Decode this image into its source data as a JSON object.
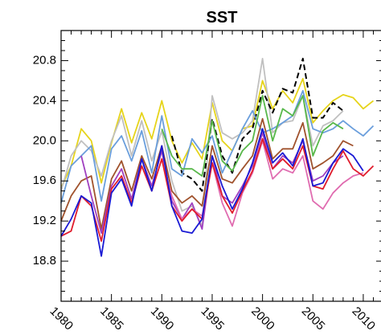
{
  "chart_data": {
    "type": "line",
    "title": "SST",
    "xlabel": "",
    "ylabel": "",
    "xlim": [
      1980,
      2012
    ],
    "ylim": [
      18.4,
      21.1
    ],
    "grid": false,
    "x_ticks": [
      "1980",
      "1985",
      "1990",
      "1995",
      "2000",
      "2005",
      "2010"
    ],
    "y_ticks": [
      "18.8",
      "19.2",
      "19.6",
      "20.0",
      "20.4",
      "20.8"
    ],
    "x": [
      1980,
      1981,
      1982,
      1983,
      1984,
      1985,
      1986,
      1987,
      1988,
      1989,
      1990,
      1991,
      1992,
      1993,
      1994,
      1995,
      1996,
      1997,
      1998,
      1999,
      2000,
      2001,
      2002,
      2003,
      2004,
      2005,
      2006,
      2007,
      2008,
      2009,
      2010,
      2011
    ],
    "series": [
      {
        "color": "#e6d41a",
        "dash": false,
        "values": [
          19.53,
          19.75,
          20.12,
          20.0,
          19.58,
          19.98,
          20.32,
          19.98,
          20.28,
          20.02,
          20.4,
          20.0,
          19.78,
          19.98,
          19.82,
          20.38,
          20.0,
          19.9,
          20.12,
          20.15,
          20.6,
          20.32,
          20.5,
          20.38,
          20.62,
          20.18,
          20.3,
          20.4,
          20.46,
          20.43,
          20.32,
          20.4
        ]
      },
      {
        "color": "#c0c0c0",
        "dash": false,
        "values": [
          19.5,
          19.85,
          20.0,
          19.9,
          19.65,
          20.0,
          20.25,
          19.85,
          20.2,
          19.8,
          20.1,
          19.6,
          19.3,
          19.35,
          19.15,
          20.45,
          20.08,
          20.02,
          20.08,
          20.2,
          20.82,
          20.08,
          20.18,
          20.2,
          20.45,
          19.95,
          20.15,
          20.2,
          20.3,
          null,
          null,
          null
        ]
      },
      {
        "color": "#000000",
        "dash": true,
        "values": [
          null,
          null,
          null,
          null,
          null,
          null,
          null,
          null,
          null,
          null,
          null,
          20.05,
          19.68,
          19.62,
          19.5,
          20.22,
          19.85,
          19.68,
          20.02,
          20.12,
          20.5,
          20.28,
          20.52,
          20.48,
          20.82,
          20.23,
          20.23,
          20.38,
          20.3,
          null,
          null,
          null
        ]
      },
      {
        "color": "#6a9edc",
        "dash": false,
        "values": [
          19.38,
          19.75,
          19.85,
          19.95,
          19.4,
          19.92,
          20.05,
          19.8,
          20.1,
          19.68,
          20.25,
          19.72,
          19.65,
          20.02,
          19.88,
          20.05,
          19.68,
          19.9,
          20.12,
          20.3,
          20.08,
          20.12,
          20.18,
          20.25,
          20.5,
          20.12,
          20.08,
          20.12,
          20.2,
          20.12,
          20.05,
          20.15
        ]
      },
      {
        "color": "#58b84a",
        "dash": false,
        "values": [
          null,
          null,
          null,
          null,
          null,
          null,
          null,
          null,
          null,
          null,
          20.12,
          19.85,
          19.72,
          19.72,
          19.65,
          20.2,
          19.8,
          19.7,
          19.9,
          20.0,
          20.45,
          20.0,
          20.32,
          20.25,
          20.45,
          19.85,
          20.1,
          20.18,
          20.12,
          null,
          null,
          null
        ]
      },
      {
        "color": "#a0522d",
        "dash": false,
        "values": [
          19.2,
          19.45,
          19.6,
          19.65,
          19.12,
          19.62,
          19.8,
          19.5,
          19.85,
          19.62,
          19.95,
          19.5,
          19.38,
          19.45,
          19.35,
          19.95,
          19.62,
          19.58,
          19.72,
          19.85,
          20.22,
          19.82,
          19.92,
          19.92,
          20.18,
          19.72,
          19.78,
          19.85,
          20.0,
          19.95,
          null,
          null
        ]
      },
      {
        "color": "#a040c0",
        "dash": false,
        "values": [
          null,
          null,
          19.85,
          19.45,
          19.08,
          19.55,
          19.72,
          19.42,
          19.82,
          19.55,
          19.9,
          19.4,
          19.22,
          19.38,
          19.12,
          19.85,
          19.45,
          19.38,
          19.55,
          19.75,
          20.08,
          19.72,
          19.85,
          19.78,
          20.0,
          19.6,
          19.65,
          19.78,
          19.85,
          null,
          null,
          null
        ]
      },
      {
        "color": "#e06cb0",
        "dash": false,
        "values": [
          null,
          null,
          null,
          null,
          null,
          null,
          null,
          null,
          null,
          null,
          19.82,
          19.45,
          19.22,
          19.32,
          19.25,
          19.78,
          19.38,
          19.15,
          19.48,
          19.68,
          20.0,
          19.62,
          19.72,
          19.68,
          19.85,
          19.4,
          19.32,
          19.48,
          19.58,
          19.65,
          19.68,
          null
        ]
      },
      {
        "color": "#e01c2c",
        "dash": false,
        "values": [
          19.05,
          19.1,
          19.45,
          19.35,
          19.0,
          19.52,
          19.65,
          19.38,
          19.75,
          19.5,
          19.82,
          19.35,
          19.2,
          19.32,
          19.22,
          19.78,
          19.45,
          19.28,
          19.5,
          19.7,
          20.02,
          19.72,
          19.82,
          19.72,
          19.95,
          19.55,
          19.52,
          19.72,
          19.9,
          19.72,
          19.65,
          19.75
        ]
      },
      {
        "color": "#1a1ad4",
        "dash": false,
        "values": [
          19.05,
          19.22,
          19.45,
          19.38,
          18.85,
          19.48,
          19.62,
          19.35,
          19.82,
          19.5,
          19.95,
          19.35,
          19.1,
          19.08,
          19.22,
          19.85,
          19.55,
          19.32,
          19.52,
          19.78,
          20.12,
          19.78,
          19.88,
          19.75,
          20.02,
          19.55,
          19.58,
          19.78,
          19.92,
          19.85,
          19.7,
          null
        ]
      }
    ]
  }
}
